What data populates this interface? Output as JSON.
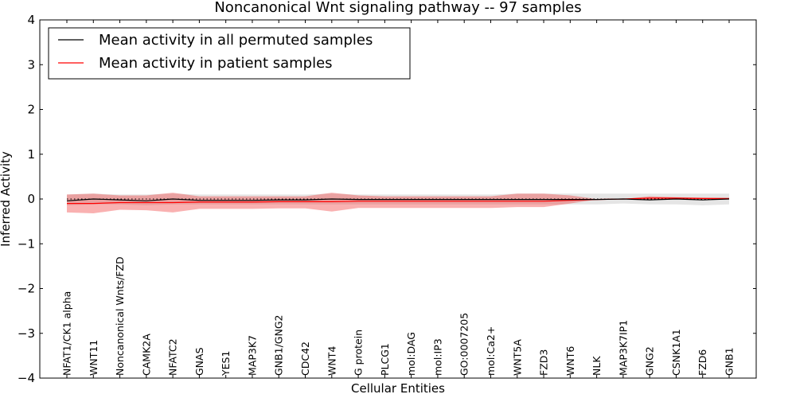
{
  "chart_data": {
    "type": "line",
    "title": "Noncanonical Wnt signaling pathway -- 97 samples",
    "xlabel": "Cellular Entities",
    "ylabel": "Inferred Activity",
    "ylim": [
      -4,
      4
    ],
    "yticks": [
      "4",
      "3",
      "2",
      "1",
      "0",
      "−1",
      "−2",
      "−3",
      "−4"
    ],
    "categories": [
      "NFAT1/CK1 alpha",
      "WNT11",
      "Noncanonical Wnts/FZD",
      "CAMK2A",
      "NFATC2",
      "GNAS",
      "YES1",
      "MAP3K7",
      "GNB1/GNG2",
      "CDC42",
      "WNT4",
      "G protein",
      "PLCG1",
      "mol:DAG",
      "mol:IP3",
      "GO:0007205",
      "mol:Ca2+",
      "WNT5A",
      "FZD3",
      "WNT6",
      "NLK",
      "MAP3K7IP1",
      "GNG2",
      "CSNK1A1",
      "FZD6",
      "GNB1"
    ],
    "series": [
      {
        "name": "Mean activity in all permuted samples",
        "color": "#000000",
        "values": [
          -0.04,
          0.0,
          -0.02,
          -0.04,
          0.0,
          -0.03,
          -0.03,
          -0.03,
          -0.02,
          -0.02,
          0.0,
          -0.01,
          -0.01,
          -0.01,
          -0.01,
          -0.01,
          -0.01,
          -0.01,
          -0.01,
          -0.01,
          -0.01,
          0.0,
          -0.02,
          0.0,
          -0.02,
          0.0
        ],
        "band_upper": [
          0.1,
          0.12,
          0.1,
          0.1,
          0.12,
          0.1,
          0.1,
          0.1,
          0.1,
          0.1,
          0.12,
          0.1,
          0.1,
          0.1,
          0.1,
          0.1,
          0.1,
          0.12,
          0.12,
          0.12,
          0.12,
          0.12,
          0.12,
          0.12,
          0.12,
          0.12
        ],
        "band_lower": [
          -0.14,
          -0.12,
          -0.12,
          -0.14,
          -0.12,
          -0.12,
          -0.12,
          -0.12,
          -0.12,
          -0.12,
          -0.12,
          -0.12,
          -0.12,
          -0.12,
          -0.12,
          -0.12,
          -0.12,
          -0.12,
          -0.12,
          -0.12,
          -0.12,
          -0.1,
          -0.12,
          -0.12,
          -0.14,
          -0.12
        ]
      },
      {
        "name": "Mean activity in patient samples",
        "color": "#ff0000",
        "values": [
          -0.1,
          -0.1,
          -0.08,
          -0.08,
          -0.08,
          -0.07,
          -0.07,
          -0.07,
          -0.06,
          -0.06,
          -0.06,
          -0.05,
          -0.05,
          -0.05,
          -0.05,
          -0.05,
          -0.05,
          -0.05,
          -0.05,
          -0.03,
          -0.01,
          0.0,
          0.02,
          0.02,
          0.01,
          0.01
        ],
        "band_upper": [
          0.1,
          0.12,
          0.08,
          0.08,
          0.14,
          0.06,
          0.06,
          0.06,
          0.06,
          0.06,
          0.14,
          0.08,
          0.06,
          0.06,
          0.06,
          0.06,
          0.06,
          0.12,
          0.12,
          0.08,
          0.0,
          0.0,
          0.06,
          0.04,
          0.03,
          0.02
        ],
        "band_lower": [
          -0.3,
          -0.32,
          -0.24,
          -0.25,
          -0.3,
          -0.22,
          -0.22,
          -0.22,
          -0.21,
          -0.21,
          -0.28,
          -0.2,
          -0.2,
          -0.2,
          -0.2,
          -0.2,
          -0.2,
          -0.18,
          -0.18,
          -0.1,
          -0.01,
          0.0,
          -0.01,
          0.0,
          0.0,
          0.0
        ]
      }
    ],
    "reference_line": 0,
    "legend_position": "upper-left"
  }
}
